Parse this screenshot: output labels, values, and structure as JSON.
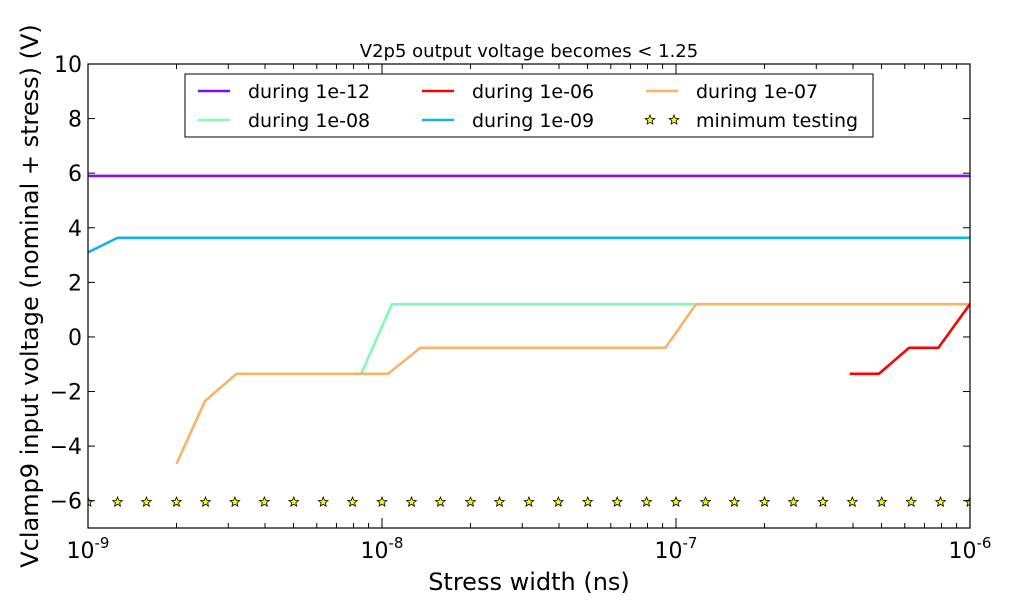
{
  "chart_data": {
    "type": "line",
    "title": "V2p5 output voltage becomes < 1.25",
    "xlabel": "Stress width (ns)",
    "ylabel": "Vclamp9 input voltage (nominal + stress) (V)",
    "xscale": "log",
    "xlim": [
      1e-09,
      1e-06
    ],
    "ylim": [
      -7,
      10
    ],
    "yticks": [
      -6,
      -4,
      -2,
      0,
      2,
      4,
      6,
      8,
      10
    ],
    "ytick_labels": [
      "−6",
      "−4",
      "−2",
      "0",
      "2",
      "4",
      "6",
      "8",
      "10"
    ],
    "xticks": [
      {
        "value": 1e-09,
        "base": "10",
        "exp": "-9"
      },
      {
        "value": 1e-08,
        "base": "10",
        "exp": "-8"
      },
      {
        "value": 1e-07,
        "base": "10",
        "exp": "-7"
      },
      {
        "value": 1e-06,
        "base": "10",
        "exp": "-6"
      }
    ],
    "grid": false,
    "legend_position": "top-center",
    "legend_columns": 3,
    "series": [
      {
        "name": "during 1e-12",
        "color": "#7f0ff0",
        "style": "line",
        "x": [
          1e-09,
          1e-06
        ],
        "y": [
          5.9,
          5.9
        ]
      },
      {
        "name": "during 1e-09",
        "color": "#12b2e8",
        "style": "line",
        "x": [
          1e-09,
          1.26e-09,
          1e-06
        ],
        "y": [
          3.1,
          3.63,
          3.63
        ]
      },
      {
        "name": "during 1e-08",
        "color": "#7ffdb2",
        "style": "line",
        "x": [
          8.5e-09,
          1.08e-08,
          1e-06
        ],
        "y": [
          -1.35,
          1.2,
          1.2
        ]
      },
      {
        "name": "during 1e-07",
        "color": "#f8b366",
        "style": "line",
        "x": [
          2e-09,
          2.5e-09,
          3.2e-09,
          1.05e-08,
          1.35e-08,
          9.2e-08,
          1.17e-07,
          1e-06
        ],
        "y": [
          -4.65,
          -2.35,
          -1.35,
          -1.35,
          -0.4,
          -0.4,
          1.2,
          1.2
        ]
      },
      {
        "name": "during 1e-06",
        "color": "#ff0000",
        "style": "line",
        "x": [
          3.9e-07,
          4.9e-07,
          6.2e-07,
          7.8e-07,
          1e-06
        ],
        "y": [
          -1.35,
          -1.35,
          -0.4,
          -0.4,
          1.2
        ]
      },
      {
        "name": "minimum testing",
        "color": "#ffff00",
        "style": "markers",
        "marker": "star",
        "x": [
          1e-09,
          1.26e-09,
          1.58e-09,
          2e-09,
          2.51e-09,
          3.16e-09,
          3.98e-09,
          5.01e-09,
          6.31e-09,
          7.94e-09,
          1e-08,
          1.26e-08,
          1.58e-08,
          2e-08,
          2.51e-08,
          3.16e-08,
          3.98e-08,
          5.01e-08,
          6.31e-08,
          7.94e-08,
          1e-07,
          1.26e-07,
          1.58e-07,
          2e-07,
          2.51e-07,
          3.16e-07,
          3.98e-07,
          5.01e-07,
          6.31e-07,
          7.94e-07,
          1e-06
        ],
        "y": [
          -6.05,
          -6.05,
          -6.05,
          -6.05,
          -6.05,
          -6.05,
          -6.05,
          -6.05,
          -6.05,
          -6.05,
          -6.05,
          -6.05,
          -6.05,
          -6.05,
          -6.05,
          -6.05,
          -6.05,
          -6.05,
          -6.05,
          -6.05,
          -6.05,
          -6.05,
          -6.05,
          -6.05,
          -6.05,
          -6.05,
          -6.05,
          -6.05,
          -6.05,
          -6.05,
          -6.05
        ]
      }
    ],
    "legend_order": [
      0,
      2,
      4,
      1,
      3,
      5
    ]
  }
}
